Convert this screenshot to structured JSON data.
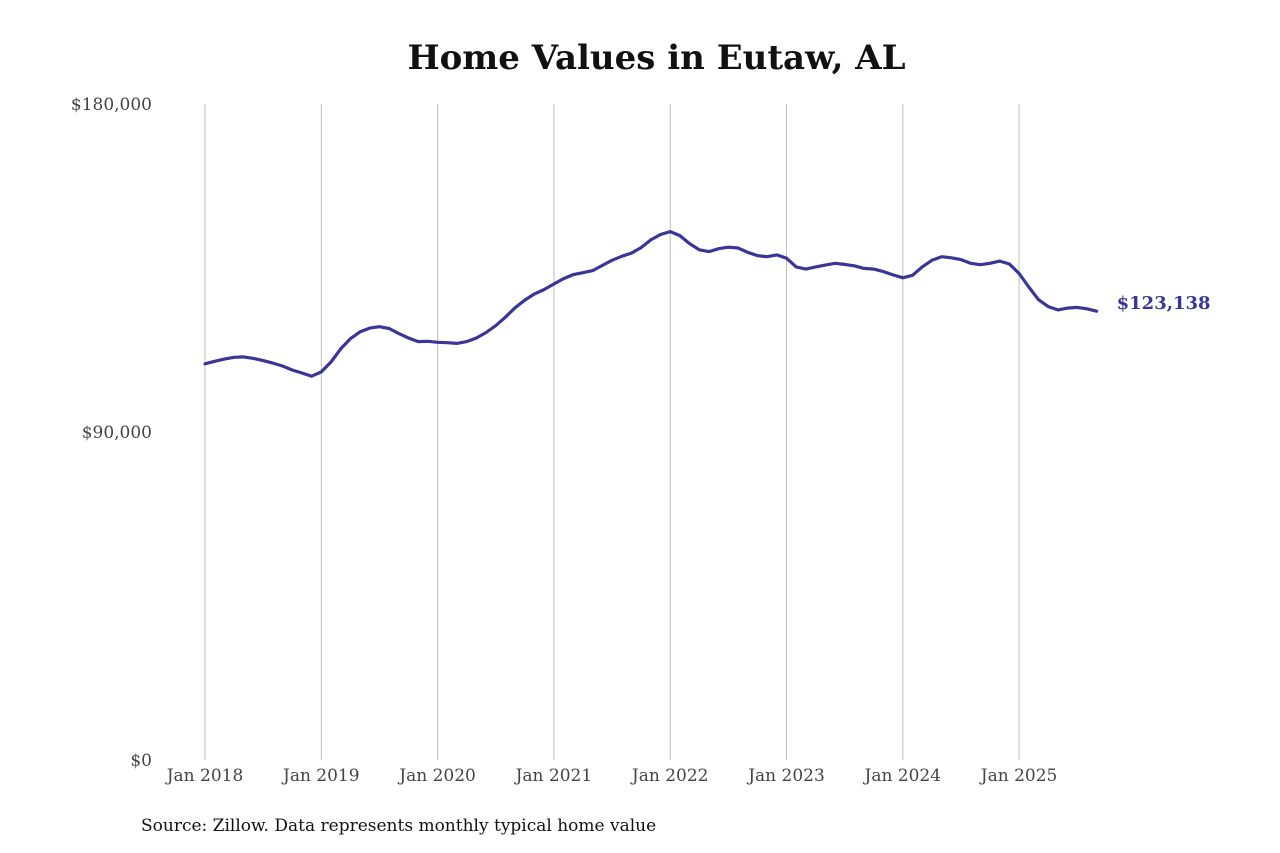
{
  "chart_data": {
    "type": "line",
    "title": "Home Values in Eutaw, AL",
    "source_note": "Source: Zillow. Data represents monthly typical home value",
    "xlabel": "",
    "ylabel": "",
    "ylim": [
      0,
      180000
    ],
    "yticks": [
      {
        "value": 0,
        "label": "$0"
      },
      {
        "value": 90000,
        "label": "$90,000"
      },
      {
        "value": 180000,
        "label": "$180,000"
      }
    ],
    "xticks": [
      {
        "date": "2018-01",
        "label": "Jan 2018"
      },
      {
        "date": "2019-01",
        "label": "Jan 2019"
      },
      {
        "date": "2020-01",
        "label": "Jan 2020"
      },
      {
        "date": "2021-01",
        "label": "Jan 2021"
      },
      {
        "date": "2022-01",
        "label": "Jan 2022"
      },
      {
        "date": "2023-01",
        "label": "Jan 2023"
      },
      {
        "date": "2024-01",
        "label": "Jan 2024"
      },
      {
        "date": "2025-01",
        "label": "Jan 2025"
      }
    ],
    "grid": {
      "vertical": true,
      "horizontal": false
    },
    "legend": "none",
    "line_color": "#3a3596",
    "end_label": "$123,138",
    "series": [
      {
        "x": [
          "2018-01",
          "2018-02",
          "2018-03",
          "2018-04",
          "2018-05",
          "2018-06",
          "2018-07",
          "2018-08",
          "2018-09",
          "2018-10",
          "2018-11",
          "2018-12",
          "2019-01",
          "2019-02",
          "2019-03",
          "2019-04",
          "2019-05",
          "2019-06",
          "2019-07",
          "2019-08",
          "2019-09",
          "2019-10",
          "2019-11",
          "2019-12",
          "2020-01",
          "2020-02",
          "2020-03",
          "2020-04",
          "2020-05",
          "2020-06",
          "2020-07",
          "2020-08",
          "2020-09",
          "2020-10",
          "2020-11",
          "2020-12",
          "2021-01",
          "2021-02",
          "2021-03",
          "2021-04",
          "2021-05",
          "2021-06",
          "2021-07",
          "2021-08",
          "2021-09",
          "2021-10",
          "2021-11",
          "2021-12",
          "2022-01",
          "2022-02",
          "2022-03",
          "2022-04",
          "2022-05",
          "2022-06",
          "2022-07",
          "2022-08",
          "2022-09",
          "2022-10",
          "2022-11",
          "2022-12",
          "2023-01",
          "2023-02",
          "2023-03",
          "2023-04",
          "2023-05",
          "2023-06",
          "2023-07",
          "2023-08",
          "2023-09",
          "2023-10",
          "2023-11",
          "2023-12",
          "2024-01",
          "2024-02",
          "2024-03",
          "2024-04",
          "2024-05",
          "2024-06",
          "2024-07",
          "2024-08",
          "2024-09",
          "2024-10",
          "2024-11",
          "2024-12",
          "2025-01",
          "2025-02",
          "2025-03",
          "2025-04",
          "2025-05",
          "2025-06",
          "2025-07",
          "2025-08",
          "2025-09"
        ],
        "values": [
          108700,
          109400,
          110000,
          110500,
          110600,
          110200,
          109600,
          108900,
          108100,
          107000,
          106200,
          105300,
          106500,
          109200,
          112800,
          115600,
          117500,
          118500,
          118900,
          118400,
          117000,
          115800,
          114800,
          114900,
          114600,
          114500,
          114300,
          114800,
          115800,
          117300,
          119200,
          121500,
          124100,
          126200,
          127900,
          129100,
          130600,
          132100,
          133200,
          133700,
          134300,
          135700,
          137100,
          138200,
          139100,
          140600,
          142700,
          144200,
          145000,
          143900,
          141700,
          140000,
          139500,
          140300,
          140700,
          140500,
          139300,
          138400,
          138100,
          138600,
          137700,
          135300,
          134700,
          135300,
          135800,
          136300,
          136000,
          135600,
          134900,
          134700,
          134000,
          133100,
          132300,
          133000,
          135300,
          137100,
          138100,
          137800,
          137300,
          136300,
          135900,
          136300,
          136900,
          136100,
          133500,
          129800,
          126300,
          124400,
          123500,
          124000,
          124200,
          123800,
          123138
        ]
      }
    ]
  }
}
